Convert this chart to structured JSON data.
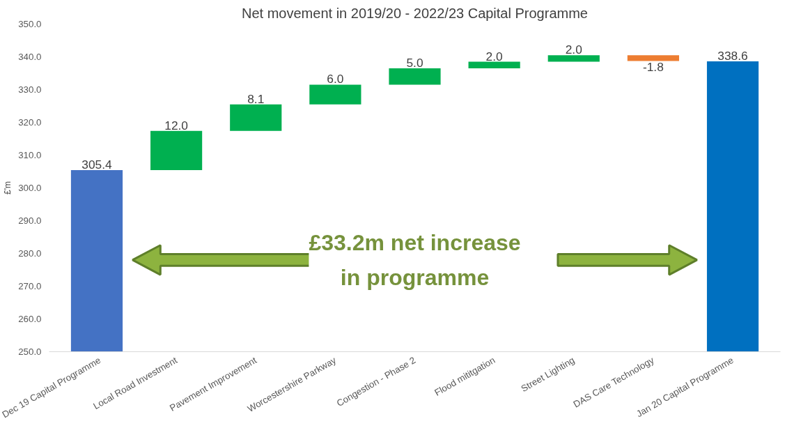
{
  "chart_data": {
    "type": "bar",
    "title": "Net movement in 2019/20 - 2022/23 Capital Programme",
    "ylabel": "£'m",
    "categories": [
      "Dec 19 Capital Programme",
      "Local Road Investment",
      "Pavement Improvement",
      "Worcestershire Parkway",
      "Congestion - Phase 2",
      "Flood mititgation",
      "Street Lighting",
      "DAS Care Technology",
      "Jan 20 Capital Programme"
    ],
    "values": [
      305.4,
      12.0,
      8.1,
      6.0,
      5.0,
      2.0,
      2.0,
      -1.8,
      338.6
    ],
    "base": [
      null,
      305.4,
      317.4,
      325.5,
      331.5,
      336.5,
      338.5,
      340.5,
      null
    ],
    "colors": [
      "#4472c4",
      "#00b050",
      "#00b050",
      "#00b050",
      "#00b050",
      "#00b050",
      "#00b050",
      "#ed7d31",
      "#0070c0"
    ],
    "value_labels": [
      "305.4",
      "12.0",
      "8.1",
      "6.0",
      "5.0",
      "2.0",
      "2.0",
      "-1.8",
      "338.6"
    ],
    "ylim": [
      250,
      350
    ],
    "yticks": [
      {
        "value": 250,
        "label": "250.0"
      },
      {
        "value": 260,
        "label": "260.0"
      },
      {
        "value": 270,
        "label": "270.0"
      },
      {
        "value": 280,
        "label": "280.0"
      },
      {
        "value": 290,
        "label": "290.0"
      },
      {
        "value": 300,
        "label": "300.0"
      },
      {
        "value": 310,
        "label": "310.0"
      },
      {
        "value": 320,
        "label": "320.0"
      },
      {
        "value": 330,
        "label": "330.0"
      },
      {
        "value": 340,
        "label": "340.0"
      },
      {
        "value": 350,
        "label": "350.0"
      }
    ],
    "grid": false,
    "annotations": [
      "£33.2m net increase\nin programme"
    ]
  }
}
